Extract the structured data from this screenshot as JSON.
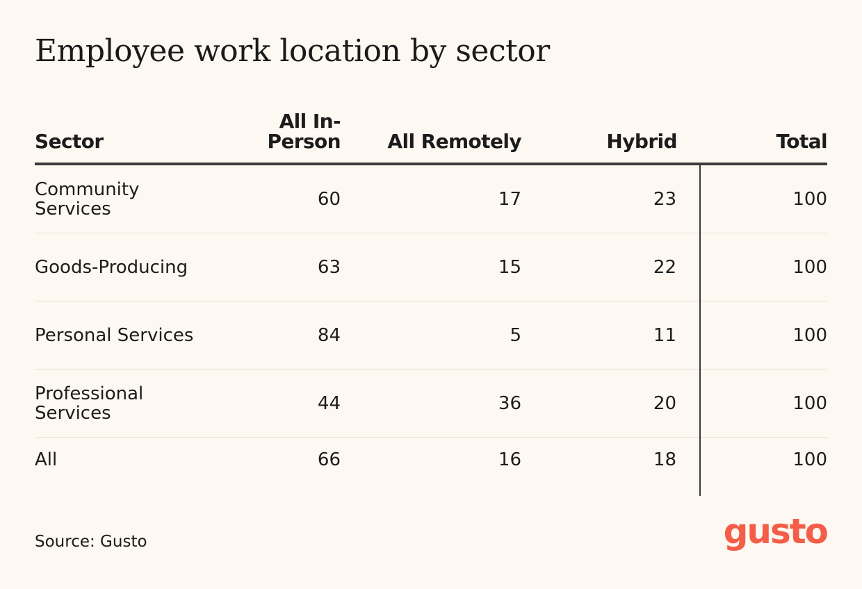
{
  "title": "Employee work location by sector",
  "source": "Source: Gusto",
  "logo": {
    "text": "gusto",
    "color": "#f45d48"
  },
  "colors": {
    "background": "#fdf8f1",
    "text": "#1c1c1c",
    "rule": "#3a3a3a",
    "row_divider": "#e7e0d6"
  },
  "chart_data": {
    "type": "table",
    "title": "Employee work location by sector",
    "columns": [
      "Sector",
      "All In-Person",
      "All Remotely",
      "Hybrid",
      "Total"
    ],
    "rows": [
      {
        "sector": "Community Services",
        "in_person": "60",
        "remote": "17",
        "hybrid": "23",
        "total": "100"
      },
      {
        "sector": "Goods-Producing",
        "in_person": "63",
        "remote": "15",
        "hybrid": "22",
        "total": "100"
      },
      {
        "sector": "Personal Services",
        "in_person": "84",
        "remote": "5",
        "hybrid": "11",
        "total": "100"
      },
      {
        "sector": "Professional Services",
        "in_person": "44",
        "remote": "36",
        "hybrid": "20",
        "total": "100"
      },
      {
        "sector": "All",
        "in_person": "66",
        "remote": "16",
        "hybrid": "18",
        "total": "100"
      }
    ]
  }
}
